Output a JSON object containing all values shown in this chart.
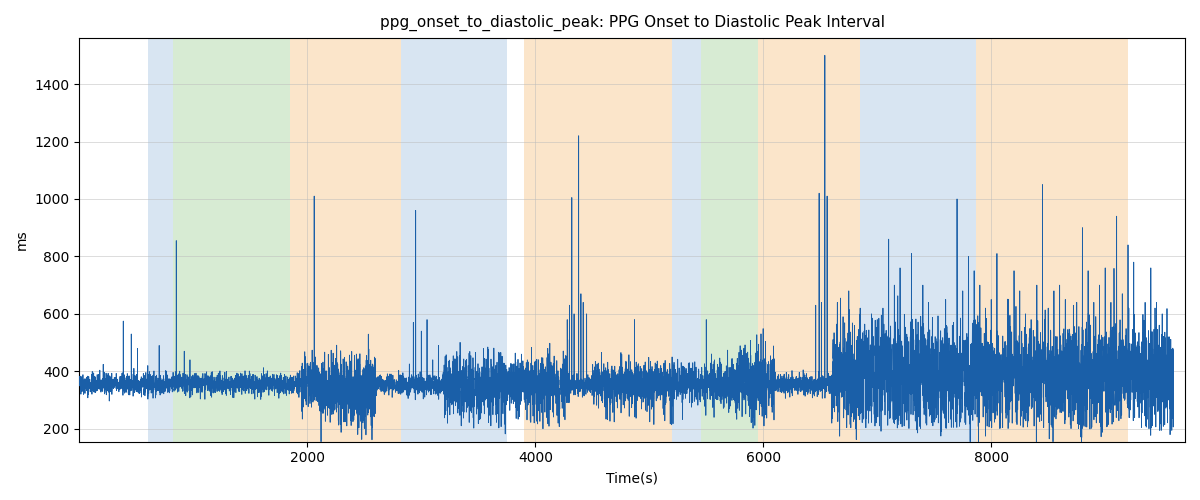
{
  "title": "ppg_onset_to_diastolic_peak: PPG Onset to Diastolic Peak Interval",
  "xlabel": "Time(s)",
  "ylabel": "ms",
  "xlim": [
    0,
    9700
  ],
  "ylim": [
    155,
    1560
  ],
  "figsize": [
    12,
    5
  ],
  "dpi": 100,
  "line_color": "#1a5fa8",
  "line_width": 0.6,
  "bands": [
    {
      "xmin": 600,
      "xmax": 820,
      "color": "#b8d0e8",
      "alpha": 0.55
    },
    {
      "xmin": 820,
      "xmax": 1850,
      "color": "#b0d8a8",
      "alpha": 0.5
    },
    {
      "xmin": 1850,
      "xmax": 2820,
      "color": "#f8d0a0",
      "alpha": 0.55
    },
    {
      "xmin": 2820,
      "xmax": 3750,
      "color": "#b8d0e8",
      "alpha": 0.55
    },
    {
      "xmin": 3900,
      "xmax": 5200,
      "color": "#f8d0a0",
      "alpha": 0.55
    },
    {
      "xmin": 5200,
      "xmax": 5450,
      "color": "#b8d0e8",
      "alpha": 0.55
    },
    {
      "xmin": 5450,
      "xmax": 5950,
      "color": "#b0d8a8",
      "alpha": 0.5
    },
    {
      "xmin": 5950,
      "xmax": 6850,
      "color": "#f8d0a0",
      "alpha": 0.55
    },
    {
      "xmin": 6850,
      "xmax": 7870,
      "color": "#b8d0e8",
      "alpha": 0.55
    },
    {
      "xmin": 7870,
      "xmax": 9200,
      "color": "#f8d0a0",
      "alpha": 0.55
    }
  ],
  "grid_color": "#bbbbbb",
  "grid_alpha": 0.7,
  "grid_linewidth": 0.5,
  "yticks": [
    200,
    400,
    600,
    800,
    1000,
    1200,
    1400
  ],
  "xticks": [
    2000,
    4000,
    6000,
    8000
  ],
  "seed": 42,
  "n_points": 9600
}
